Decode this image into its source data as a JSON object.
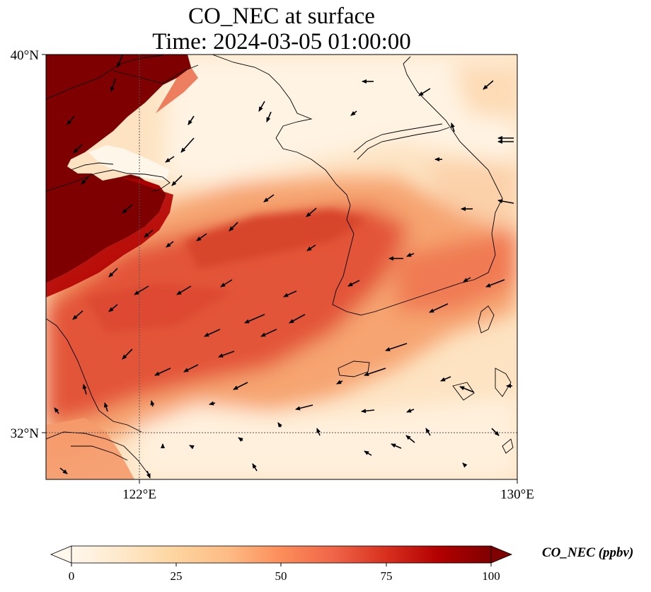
{
  "map": {
    "title_line1": "CO_NEC at surface",
    "title_line2": "Time: 2024-03-05 01:00:00",
    "lat_labels": [
      "40°N",
      "32°N"
    ],
    "lon_labels": [
      "122°E",
      "130°E"
    ],
    "projection_extent": {
      "lon": [
        120,
        130
      ],
      "lat": [
        31,
        40
      ]
    },
    "gridlines": "dotted at 122°E and 32°N"
  },
  "colorbar": {
    "label": "CO_NEC (ppbv)",
    "ticks": [
      "0",
      "25",
      "50",
      "75",
      "100"
    ],
    "range": [
      0,
      100
    ],
    "extend": "both",
    "colormap": "OrRd",
    "stops": [
      "#fff7ec",
      "#fee8c8",
      "#fdd49e",
      "#fdbb84",
      "#fc8d59",
      "#ef6548",
      "#d7301f",
      "#b30000",
      "#7f0000"
    ]
  },
  "field_description_colors": {
    "background_low": "#fff1e0",
    "plume_high": "#d7301f",
    "saturated": "#7f0000"
  }
}
